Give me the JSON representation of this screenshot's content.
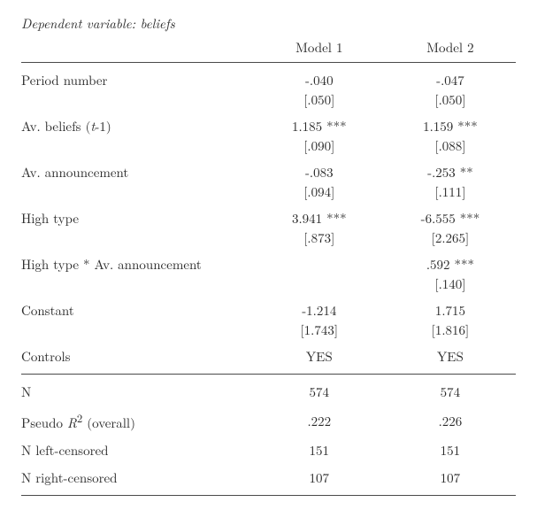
{
  "title": "Dependent variable: beliefs",
  "headers": {
    "m1": "Model 1",
    "m2": "Model 2"
  },
  "rows": [
    {
      "label": "Period number",
      "m1": "-.040",
      "m1se": "[.050]",
      "m2": "-.047",
      "m2se": "[.050]"
    },
    {
      "label_html": "Av. beliefs (<i>t</i>-1)",
      "m1": "1.185 ***",
      "m1se": "[.090]",
      "m2": "1.159 ***",
      "m2se": "[.088]"
    },
    {
      "label": "Av. announcement",
      "m1": "-.083",
      "m1se": "[.094]",
      "m2": "-.253 **",
      "m2se": "[.111]"
    },
    {
      "label": "High type",
      "m1": "3.941 ***",
      "m1se": "[.873]",
      "m2": "-6.555 ***",
      "m2se": "[2.265]"
    },
    {
      "label": "High type * Av. announcement",
      "m1": "",
      "m1se": "",
      "m2": ".592 ***",
      "m2se": "[.140]"
    },
    {
      "label": "Constant",
      "m1": "-1.214",
      "m1se": "[1.743]",
      "m2": "1.715",
      "m2se": "[1.816]"
    },
    {
      "label": "Controls",
      "m1": "YES",
      "m2": "YES",
      "single": true
    }
  ],
  "stats": [
    {
      "label": "N",
      "m1": "574",
      "m2": "574"
    },
    {
      "label_html": "Pseudo <i>R</i><sup class=\"sup\">2</sup> (overall)",
      "m1": ".222",
      "m2": ".226"
    },
    {
      "label": "N left-censored",
      "m1": "151",
      "m2": "151"
    },
    {
      "label": "N right-censored",
      "m1": "107",
      "m2": "107"
    }
  ]
}
